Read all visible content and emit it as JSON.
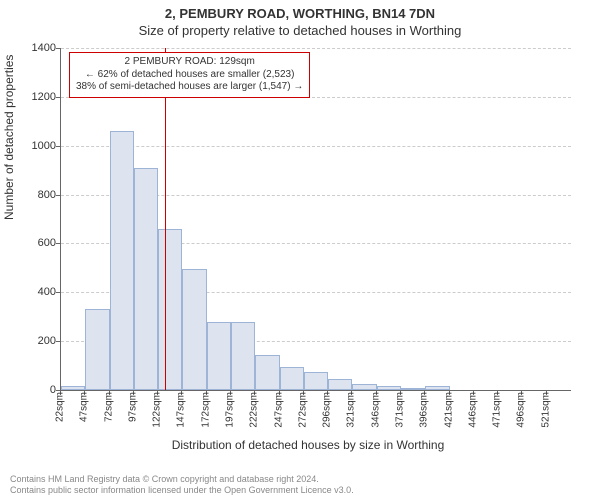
{
  "titles": {
    "line1": "2, PEMBURY ROAD, WORTHING, BN14 7DN",
    "line2": "Size of property relative to detached houses in Worthing"
  },
  "chart": {
    "type": "histogram",
    "ylabel": "Number of detached properties",
    "xlabel": "Distribution of detached houses by size in Worthing",
    "ylim": [
      0,
      1400
    ],
    "ytick_step": 200,
    "yticks": [
      0,
      200,
      400,
      600,
      800,
      1000,
      1200,
      1400
    ],
    "bar_color": "#dde4f0",
    "bar_border_color": "#9db4d6",
    "grid_color": "#cccccc",
    "axis_color": "#666666",
    "background_color": "#ffffff",
    "refline_color": "#cc0000",
    "refline_value": 129,
    "x_bin_start": 22,
    "x_bin_width": 25,
    "bars": [
      {
        "label": "22sqm",
        "value": 15
      },
      {
        "label": "47sqm",
        "value": 330
      },
      {
        "label": "72sqm",
        "value": 1060
      },
      {
        "label": "97sqm",
        "value": 910
      },
      {
        "label": "122sqm",
        "value": 660
      },
      {
        "label": "147sqm",
        "value": 495
      },
      {
        "label": "172sqm",
        "value": 280
      },
      {
        "label": "197sqm",
        "value": 280
      },
      {
        "label": "222sqm",
        "value": 145
      },
      {
        "label": "247sqm",
        "value": 95
      },
      {
        "label": "272sqm",
        "value": 75
      },
      {
        "label": "296sqm",
        "value": 45
      },
      {
        "label": "321sqm",
        "value": 25
      },
      {
        "label": "346sqm",
        "value": 15
      },
      {
        "label": "371sqm",
        "value": 5
      },
      {
        "label": "396sqm",
        "value": 15
      },
      {
        "label": "421sqm",
        "value": 0
      },
      {
        "label": "446sqm",
        "value": 0
      },
      {
        "label": "471sqm",
        "value": 0
      },
      {
        "label": "496sqm",
        "value": 0
      },
      {
        "label": "521sqm",
        "value": 0
      }
    ],
    "annotation": {
      "line1": "2 PEMBURY ROAD: 129sqm",
      "line2": "← 62% of detached houses are smaller (2,523)",
      "line3": "38% of semi-detached houses are larger (1,547) →"
    },
    "title_fontsize": 13,
    "label_fontsize": 12,
    "tick_fontsize": 11
  },
  "footer": {
    "line1": "Contains HM Land Registry data © Crown copyright and database right 2024.",
    "line2": "Contains public sector information licensed under the Open Government Licence v3.0."
  }
}
